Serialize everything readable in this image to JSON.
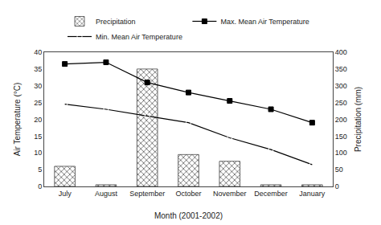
{
  "chart_data": {
    "type": "combo",
    "xlabel": "Month (2001-2002)",
    "ylabel": "Air Temperature (°C)",
    "y2label": "Precipitation (mm)",
    "categories": [
      "July",
      "August",
      "September",
      "October",
      "November",
      "December",
      "January"
    ],
    "series": [
      {
        "name": "Precipitation",
        "type": "bar",
        "axis": "y2",
        "color": "#444444",
        "values": [
          60,
          5,
          350,
          95,
          75,
          5,
          5
        ]
      },
      {
        "name": "Max. Mean Air Temperature",
        "type": "line",
        "color": "black",
        "marker": "square",
        "values": [
          36.5,
          37.0,
          31.0,
          28.0,
          25.5,
          23.0,
          19.0
        ]
      },
      {
        "name": "Min. Mean Air Temperature",
        "type": "line",
        "color": "black",
        "marker": "circle-open",
        "values": [
          24.5,
          23.0,
          21.0,
          19.0,
          14.5,
          11.0,
          6.5
        ]
      }
    ],
    "ylim": [
      0,
      40
    ],
    "yticks": [
      0,
      5,
      10,
      15,
      20,
      25,
      30,
      35,
      40
    ],
    "y2lim": [
      0,
      400
    ],
    "y2ticks": [
      0,
      50,
      100,
      150,
      200,
      250,
      300,
      350,
      400
    ],
    "grid": false,
    "legend": "top"
  }
}
